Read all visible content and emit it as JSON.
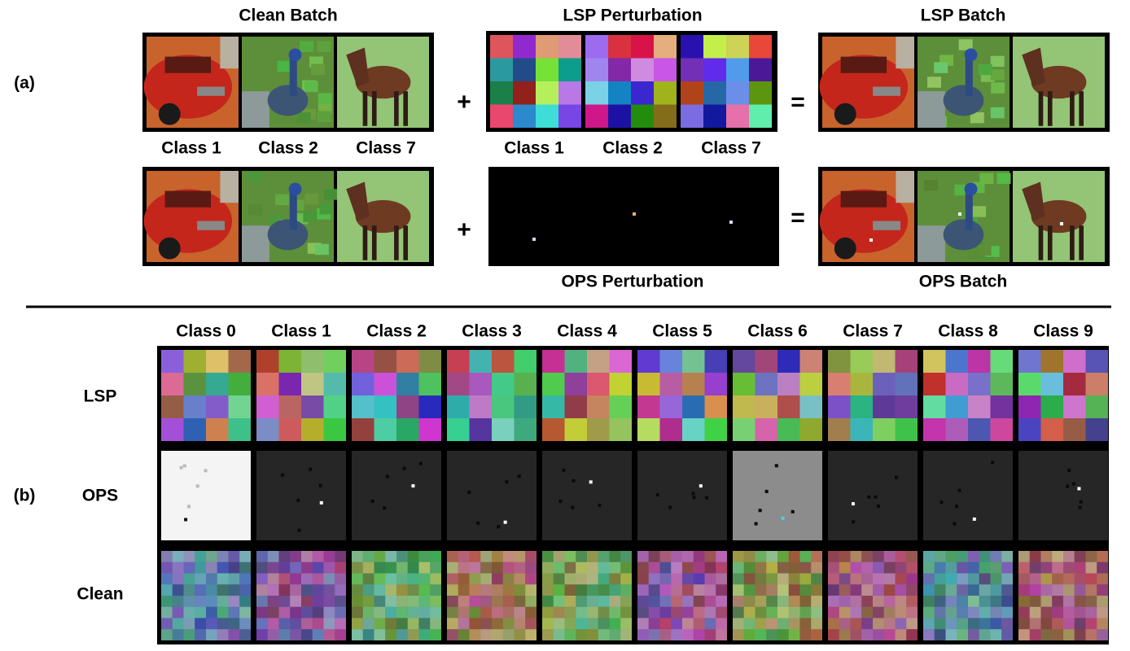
{
  "panel_a": {
    "label": "(a)",
    "clean_batch": {
      "title": "Clean Batch",
      "classes": [
        "Class 1",
        "Class 2",
        "Class 7"
      ]
    },
    "lsp_perturbation": {
      "title": "LSP Perturbation",
      "classes": [
        "Class 1",
        "Class 2",
        "Class 7"
      ]
    },
    "lsp_batch": {
      "title": "LSP Batch"
    },
    "ops_perturbation": {
      "title": "OPS Perturbation"
    },
    "ops_batch": {
      "title": "OPS Batch"
    },
    "operators": [
      "+",
      "="
    ]
  },
  "panel_b": {
    "label": "(b)",
    "columns": [
      "Class 0",
      "Class 1",
      "Class 2",
      "Class 3",
      "Class 4",
      "Class 5",
      "Class 6",
      "Class 7",
      "Class 8",
      "Class 9"
    ],
    "rows": [
      "LSP",
      "OPS",
      "Clean"
    ]
  }
}
